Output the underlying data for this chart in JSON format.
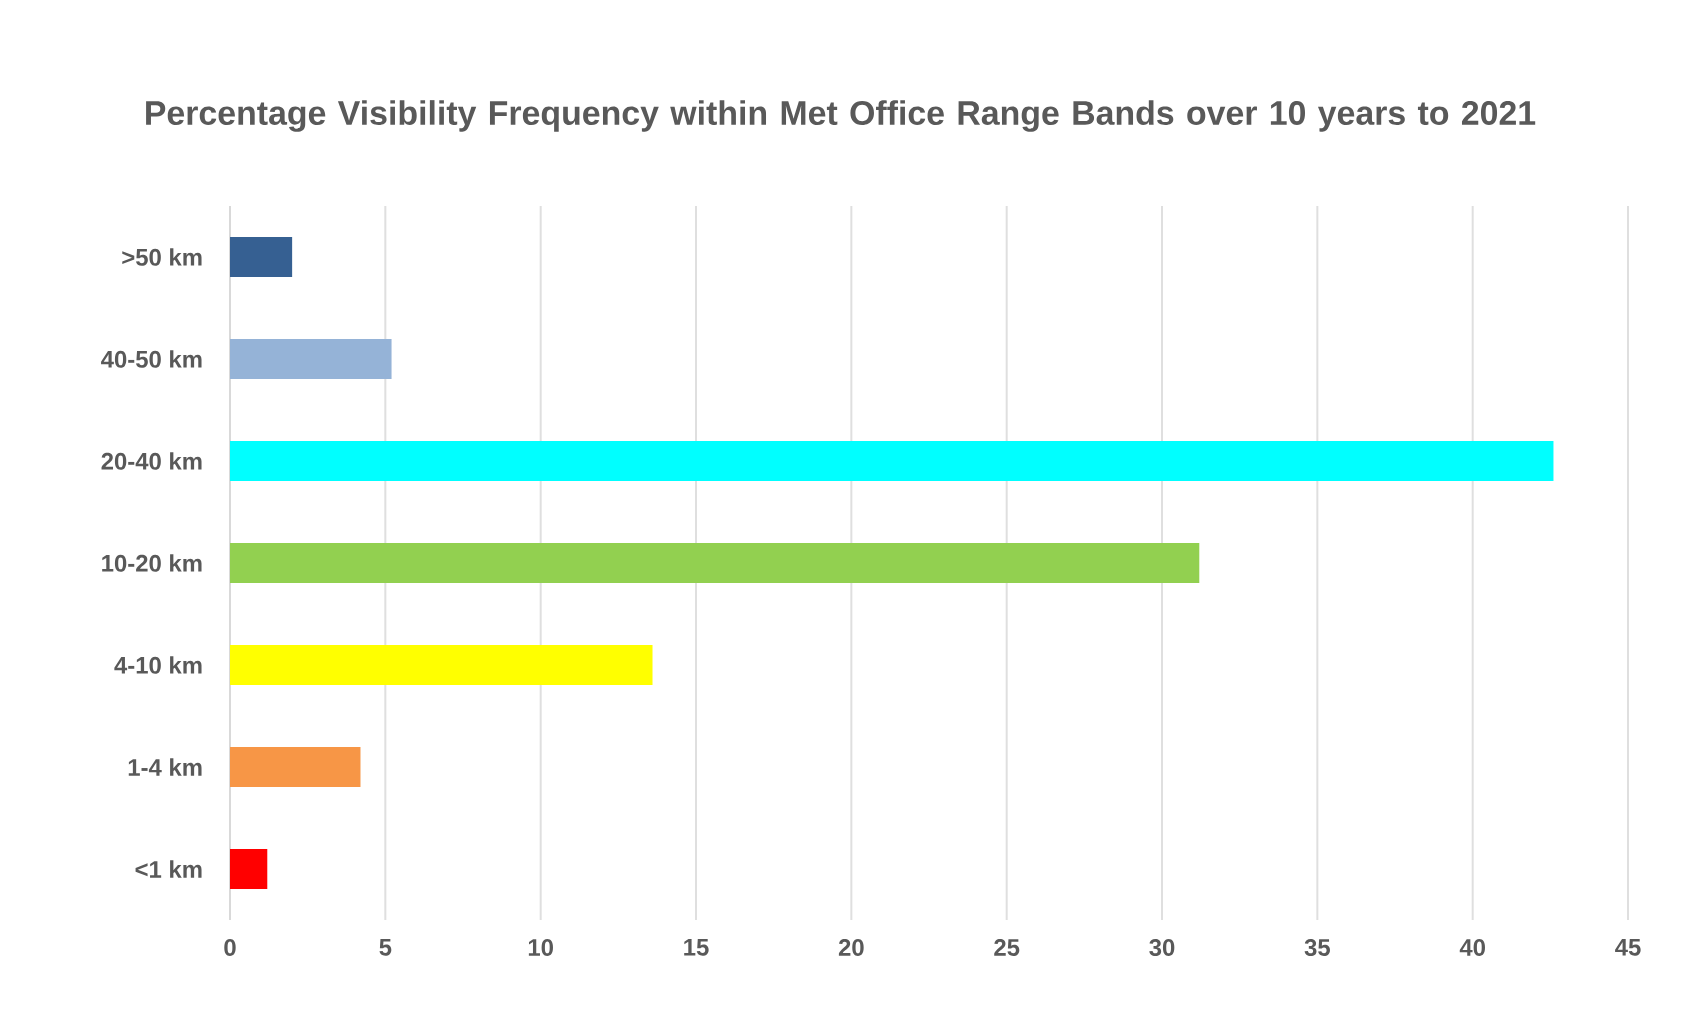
{
  "chart_data": {
    "type": "bar",
    "orientation": "horizontal",
    "title": "Percentage Visibility Frequency within Met Office Range Bands over 10 years to 2021",
    "categories": [
      ">50 km",
      "40-50 km",
      "20-40 km",
      "10-20 km",
      "4-10 km",
      "1-4 km",
      "<1 km"
    ],
    "values": [
      2.0,
      5.2,
      42.6,
      31.2,
      13.6,
      4.2,
      1.2
    ],
    "colors": [
      "#366092",
      "#95b3d7",
      "#00ffff",
      "#92d050",
      "#ffff00",
      "#f79646",
      "#ff0000"
    ],
    "xlim": [
      0,
      45
    ],
    "xticks": [
      0,
      5,
      10,
      15,
      20,
      25,
      30,
      35,
      40,
      45
    ],
    "grid": "x"
  }
}
